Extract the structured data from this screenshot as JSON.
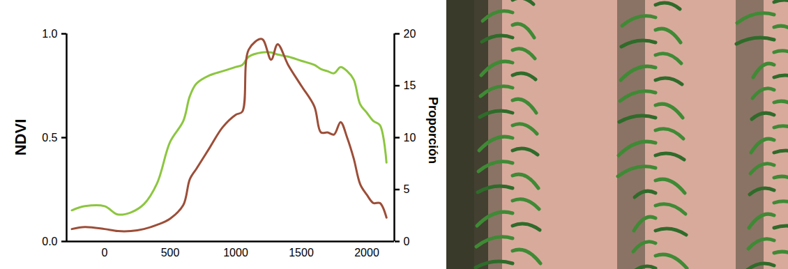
{
  "chart_data": {
    "type": "line",
    "y_label": "NDVI",
    "y2_label": "Proporción",
    "x": [
      -250,
      -150,
      0,
      100,
      200,
      300,
      400,
      500,
      600,
      650,
      700,
      800,
      900,
      1000,
      1050,
      1100,
      1200,
      1270,
      1320,
      1400,
      1500,
      1600,
      1650,
      1700,
      1750,
      1800,
      1850,
      1900,
      1950,
      2000,
      2050,
      2100,
      2150
    ],
    "series": [
      {
        "color": "#8cc63f",
        "values": [
          0.15,
          0.17,
          0.17,
          0.13,
          0.14,
          0.18,
          0.28,
          0.48,
          0.58,
          0.7,
          0.76,
          0.8,
          0.82,
          0.84,
          0.85,
          0.89,
          0.91,
          0.91,
          0.9,
          0.89,
          0.87,
          0.85,
          0.83,
          0.82,
          0.81,
          0.84,
          0.82,
          0.78,
          0.66,
          0.62,
          0.58,
          0.56,
          0.38
        ]
      },
      {
        "color": "#9c4e38",
        "axis": "y2",
        "values": [
          1.2,
          1.4,
          1.2,
          1.0,
          1.0,
          1.2,
          1.6,
          2.2,
          3.5,
          6,
          7,
          9,
          11,
          12.2,
          12.5,
          18.5,
          19.5,
          17.5,
          19,
          17,
          15,
          13,
          10.5,
          10.5,
          10.3,
          11.5,
          10,
          8,
          5.5,
          4.5,
          3.7,
          3.7,
          2.3
        ]
      }
    ],
    "xlim": [
      -290,
      2210
    ],
    "xticks": [
      0,
      500,
      1000,
      1500,
      2000
    ],
    "ylim": [
      0,
      1
    ],
    "yticks": [
      {
        "value": 0,
        "label": "0.0"
      },
      {
        "value": 0.5,
        "label": "0.5"
      },
      {
        "value": 1,
        "label": "1.0"
      }
    ],
    "y2lim": [
      0,
      20
    ],
    "y2ticks": [
      0,
      5,
      10,
      15,
      20
    ],
    "grid": false
  }
}
